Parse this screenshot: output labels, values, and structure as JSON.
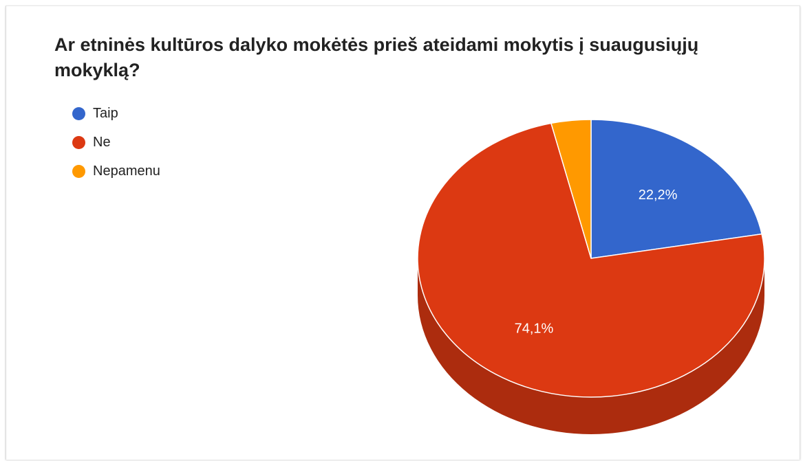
{
  "chart_data": {
    "type": "pie",
    "title": "Ar etninės kultūros dalyko mokėtės prieš ateidami mokytis į suaugusiųjų mokyklą?",
    "style": "3d",
    "legend_position": "top-left",
    "slices": [
      {
        "label": "Taip",
        "value": 22.2,
        "display": "22,2%",
        "color": "#3366cc"
      },
      {
        "label": "Ne",
        "value": 74.1,
        "display": "74,1%",
        "color": "#dc3912"
      },
      {
        "label": "Nepamenu",
        "value": 3.7,
        "display": "",
        "color": "#ff9900"
      }
    ]
  }
}
